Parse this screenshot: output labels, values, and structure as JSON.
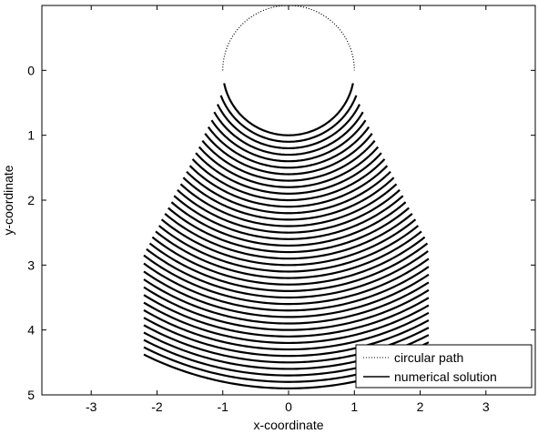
{
  "chart_data": {
    "type": "line",
    "title": "",
    "xlabel": "x-coordinate",
    "ylabel": "y-coordinate",
    "xlim": [
      -3.75,
      3.75
    ],
    "ylim": [
      -1.0,
      5.0
    ],
    "y_axis_inverted": true,
    "grid": false,
    "xticks": [
      -3,
      -2,
      -1,
      0,
      1,
      2,
      3
    ],
    "yticks": [
      0,
      1,
      2,
      3,
      4,
      5
    ],
    "legend": {
      "placement": "bottom-right",
      "entries": [
        {
          "label": "circular path",
          "style": "dotted"
        },
        {
          "label": "numerical solution",
          "style": "solid"
        }
      ]
    },
    "series": [
      {
        "name": "circular path",
        "style": "dotted",
        "shape": "circle",
        "center": [
          0,
          0
        ],
        "radius": 1,
        "visible_range_y": [
          -1.0,
          0.0
        ]
      },
      {
        "name": "numerical solution",
        "style": "solid",
        "curves": [
          {
            "radius": 1.0,
            "x_range": [
              -0.98,
              0.98
            ]
          },
          {
            "radius": 1.1,
            "x_range": [
              -1.03,
              1.03
            ]
          },
          {
            "radius": 1.2,
            "x_range": [
              -1.08,
              1.08
            ]
          },
          {
            "radius": 1.3,
            "x_range": [
              -1.13,
              1.13
            ]
          },
          {
            "radius": 1.4,
            "x_range": [
              -1.17,
              1.17
            ]
          },
          {
            "radius": 1.5,
            "x_range": [
              -1.22,
              1.22
            ]
          },
          {
            "radius": 1.6,
            "x_range": [
              -1.27,
              1.27
            ]
          },
          {
            "radius": 1.7,
            "x_range": [
              -1.31,
              1.31
            ]
          },
          {
            "radius": 1.8,
            "x_range": [
              -1.36,
              1.36
            ]
          },
          {
            "radius": 1.9,
            "x_range": [
              -1.41,
              1.41
            ]
          },
          {
            "radius": 2.0,
            "x_range": [
              -1.46,
              1.46
            ]
          },
          {
            "radius": 2.1,
            "x_range": [
              -1.5,
              1.5
            ]
          },
          {
            "radius": 2.2,
            "x_range": [
              -1.55,
              1.55
            ]
          },
          {
            "radius": 2.3,
            "x_range": [
              -1.6,
              1.6
            ]
          },
          {
            "radius": 2.4,
            "x_range": [
              -1.64,
              1.64
            ]
          },
          {
            "radius": 2.5,
            "x_range": [
              -1.69,
              1.69
            ]
          },
          {
            "radius": 2.6,
            "x_range": [
              -1.74,
              1.74
            ]
          },
          {
            "radius": 2.7,
            "x_range": [
              -1.78,
              1.78
            ]
          },
          {
            "radius": 2.8,
            "x_range": [
              -1.83,
              1.83
            ]
          },
          {
            "radius": 2.9,
            "x_range": [
              -1.88,
              1.88
            ]
          },
          {
            "radius": 3.0,
            "x_range": [
              -1.93,
              1.93
            ]
          },
          {
            "radius": 3.1,
            "x_range": [
              -1.97,
              1.97
            ]
          },
          {
            "radius": 3.2,
            "x_range": [
              -2.02,
              2.02
            ]
          },
          {
            "radius": 3.3,
            "x_range": [
              -2.07,
              2.07
            ]
          },
          {
            "radius": 3.4,
            "x_range": [
              -2.11,
              2.11
            ]
          },
          {
            "radius": 3.5,
            "x_range": [
              -2.16,
              2.12
            ]
          },
          {
            "radius": 3.6,
            "x_range": [
              -2.2,
              2.13
            ]
          },
          {
            "radius": 3.7,
            "x_range": [
              -2.2,
              2.13
            ]
          },
          {
            "radius": 3.8,
            "x_range": [
              -2.2,
              2.13
            ]
          },
          {
            "radius": 3.9,
            "x_range": [
              -2.2,
              2.13
            ]
          },
          {
            "radius": 4.0,
            "x_range": [
              -2.2,
              2.13
            ]
          },
          {
            "radius": 4.1,
            "x_range": [
              -2.2,
              2.13
            ]
          },
          {
            "radius": 4.2,
            "x_range": [
              -2.2,
              2.13
            ]
          },
          {
            "radius": 4.3,
            "x_range": [
              -2.2,
              2.13
            ]
          },
          {
            "radius": 4.4,
            "x_range": [
              -2.2,
              2.13
            ]
          },
          {
            "radius": 4.5,
            "x_range": [
              -2.2,
              2.13
            ]
          },
          {
            "radius": 4.6,
            "x_range": [
              -2.2,
              2.13
            ]
          },
          {
            "radius": 4.7,
            "x_range": [
              -2.2,
              2.13
            ]
          },
          {
            "radius": 4.8,
            "x_range": [
              -2.2,
              2.13
            ]
          },
          {
            "radius": 4.9,
            "x_range": [
              -2.2,
              2.13
            ]
          }
        ]
      }
    ]
  }
}
